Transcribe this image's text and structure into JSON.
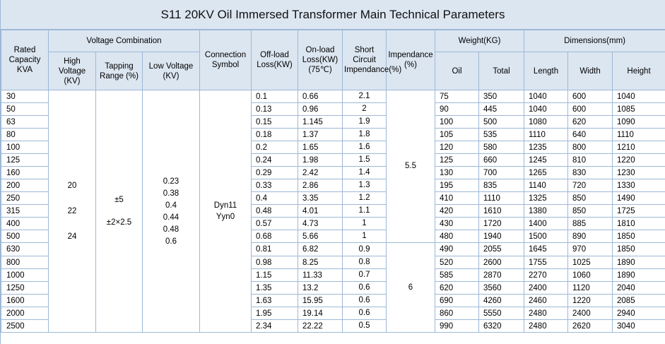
{
  "title": "S11 20KV Oil Immersed Transformer Main Technical Parameters",
  "headers": {
    "rated_capacity": "Rated Capacity KVA",
    "voltage_combination": "Voltage Combination",
    "high_voltage": "High Voltage (KV)",
    "tapping_range": "Tapping Range (%)",
    "low_voltage": "Low Voltage (KV)",
    "connection_symbol": "Connection Symbol",
    "off_load_loss": "Off-load Loss(KW)",
    "on_load_loss": "On-load Loss(KW) (75℃)",
    "short_circuit": "Short Circuit Impendance(%)",
    "impedance": "Impendance (%)",
    "weight": "Weight(KG)",
    "oil": "Oil",
    "total": "Total",
    "dimensions": "Dimensions(mm)",
    "length": "Length",
    "width": "Width",
    "height": "Height"
  },
  "merged": {
    "high_voltage": [
      "20",
      "22",
      "24"
    ],
    "tapping_range": [
      "±5",
      "±2×2.5"
    ],
    "low_voltage": [
      "0.23",
      "0.38",
      "0.4",
      "0.44",
      "0.48",
      "0.6"
    ],
    "connection": [
      "Dyn11",
      "Yyn0"
    ],
    "impedance_a": "5.5",
    "impedance_b": "6"
  },
  "rows": [
    {
      "cap": "30",
      "off": "0.1",
      "on": "0.66",
      "sc": "2.1",
      "oil": "75",
      "total": "350",
      "length": "1040",
      "width": "600",
      "height": "1040"
    },
    {
      "cap": "50",
      "off": "0.13",
      "on": "0.96",
      "sc": "2",
      "oil": "90",
      "total": "445",
      "length": "1040",
      "width": "600",
      "height": "1085"
    },
    {
      "cap": "63",
      "off": "0.15",
      "on": "1.145",
      "sc": "1.9",
      "oil": "100",
      "total": "500",
      "length": "1080",
      "width": "620",
      "height": "1090"
    },
    {
      "cap": "80",
      "off": "0.18",
      "on": "1.37",
      "sc": "1.8",
      "oil": "105",
      "total": "535",
      "length": "1110",
      "width": "640",
      "height": "1110"
    },
    {
      "cap": "100",
      "off": "0.2",
      "on": "1.65",
      "sc": "1.6",
      "oil": "120",
      "total": "580",
      "length": "1235",
      "width": "800",
      "height": "1210"
    },
    {
      "cap": "125",
      "off": "0.24",
      "on": "1.98",
      "sc": "1.5",
      "oil": "125",
      "total": "660",
      "length": "1245",
      "width": "810",
      "height": "1220"
    },
    {
      "cap": "160",
      "off": "0.29",
      "on": "2.42",
      "sc": "1.4",
      "oil": "130",
      "total": "700",
      "length": "1265",
      "width": "830",
      "height": "1230"
    },
    {
      "cap": "200",
      "off": "0.33",
      "on": "2.86",
      "sc": "1.3",
      "oil": "195",
      "total": "835",
      "length": "1140",
      "width": "720",
      "height": "1330"
    },
    {
      "cap": "250",
      "off": "0.4",
      "on": "3.35",
      "sc": "1.2",
      "oil": "410",
      "total": "1110",
      "length": "1325",
      "width": "850",
      "height": "1490"
    },
    {
      "cap": "315",
      "off": "0.48",
      "on": "4.01",
      "sc": "1.1",
      "oil": "420",
      "total": "1610",
      "length": "1380",
      "width": "850",
      "height": "1725"
    },
    {
      "cap": "400",
      "off": "0.57",
      "on": "4.73",
      "sc": "1",
      "oil": "430",
      "total": "1720",
      "length": "1400",
      "width": "885",
      "height": "1810"
    },
    {
      "cap": "500",
      "off": "0.68",
      "on": "5.66",
      "sc": "1",
      "oil": "480",
      "total": "1940",
      "length": "1500",
      "width": "890",
      "height": "1850"
    },
    {
      "cap": "630",
      "off": "0.81",
      "on": "6.82",
      "sc": "0.9",
      "oil": "490",
      "total": "2055",
      "length": "1645",
      "width": "970",
      "height": "1850"
    },
    {
      "cap": "800",
      "off": "0.98",
      "on": "8.25",
      "sc": "0.8",
      "oil": "520",
      "total": "2600",
      "length": "1755",
      "width": "1025",
      "height": "1890"
    },
    {
      "cap": "1000",
      "off": "1.15",
      "on": "11.33",
      "sc": "0.7",
      "oil": "585",
      "total": "2870",
      "length": "2270",
      "width": "1060",
      "height": "1890"
    },
    {
      "cap": "1250",
      "off": "1.35",
      "on": "13.2",
      "sc": "0.6",
      "oil": "620",
      "total": "3560",
      "length": "2400",
      "width": "1120",
      "height": "2040"
    },
    {
      "cap": "1600",
      "off": "1.63",
      "on": "15.95",
      "sc": "0.6",
      "oil": "690",
      "total": "4260",
      "length": "2460",
      "width": "1220",
      "height": "2085"
    },
    {
      "cap": "2000",
      "off": "1.95",
      "on": "19.14",
      "sc": "0.6",
      "oil": "860",
      "total": "5550",
      "length": "2480",
      "width": "2400",
      "height": "2940"
    },
    {
      "cap": "2500",
      "off": "2.34",
      "on": "22.22",
      "sc": "0.5",
      "oil": "990",
      "total": "6320",
      "length": "2480",
      "width": "2620",
      "height": "3040"
    }
  ]
}
